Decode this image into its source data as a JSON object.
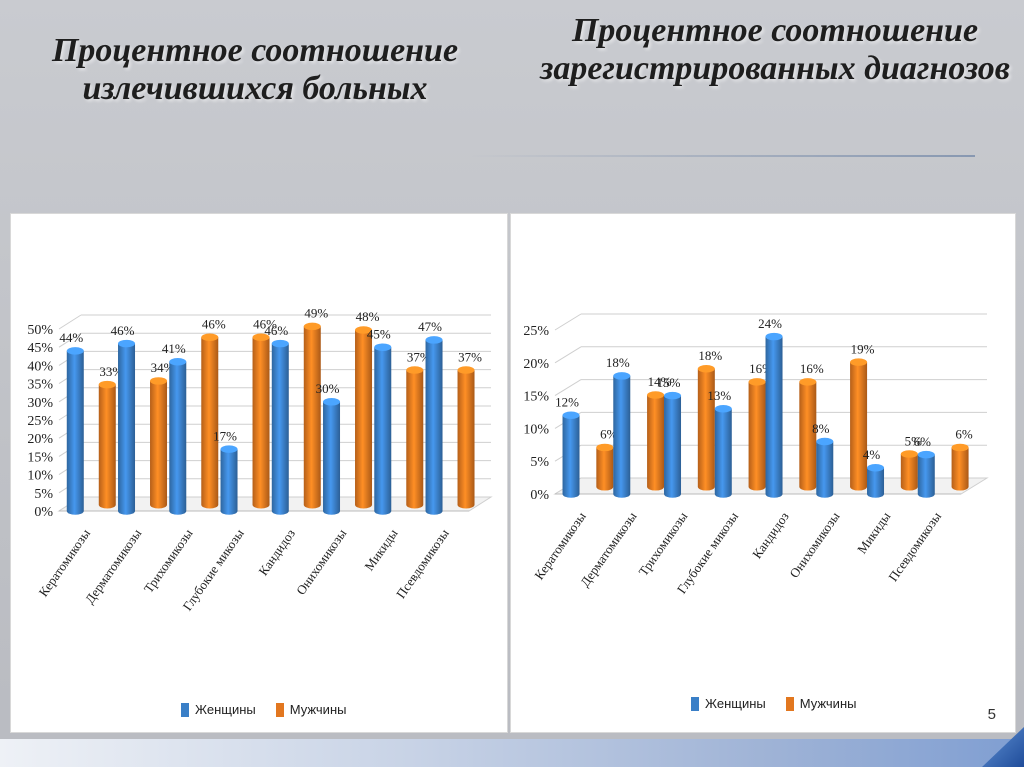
{
  "titles": {
    "left": "Процентное соотношение излечившихся больных",
    "right": "Процентное соотношение зарегистрированных диагнозов"
  },
  "page_number": "5",
  "colors": {
    "women": "#3a7fc7",
    "men": "#e2771f"
  },
  "chart_data": [
    {
      "type": "bar",
      "title": "",
      "categories": [
        "Кератомикозы",
        "Дерматомикозы",
        "Трихомикозы",
        "Глубокие микозы",
        "Кандидоз",
        "Онихомикозы",
        "Микиды",
        "Псевдомикозы"
      ],
      "series": [
        {
          "name": "Женщины",
          "values": [
            44,
            46,
            41,
            17,
            46,
            30,
            45,
            47
          ]
        },
        {
          "name": "Мужчины",
          "values": [
            33,
            34,
            46,
            46,
            49,
            48,
            37,
            37
          ]
        }
      ],
      "y_ticks": [
        "0%",
        "5%",
        "10%",
        "15%",
        "20%",
        "25%",
        "30%",
        "35%",
        "40%",
        "45%",
        "50%"
      ],
      "ylim": [
        0,
        50
      ],
      "data_labels": {
        "Женщины": [
          "44%",
          "46%",
          "41%",
          "17%",
          "46%",
          "30%",
          "45%",
          "47%"
        ],
        "Мужчины": [
          "33%",
          "34%",
          "46%",
          "46%",
          "49%",
          "48%",
          "37%",
          "37%"
        ]
      },
      "legend_position": "bottom",
      "grid": true
    },
    {
      "type": "bar",
      "title": "",
      "categories": [
        "Кератомикозы",
        "Дерматомикозы",
        "Трихомикозы",
        "Глубокие микозы",
        "Кандидоз",
        "Онихомикозы",
        "Микиды",
        "Псевдомикозы"
      ],
      "series": [
        {
          "name": "Женщины",
          "values": [
            12,
            18,
            15,
            13,
            24,
            8,
            4,
            6
          ]
        },
        {
          "name": "Мужчины",
          "values": [
            6,
            14,
            18,
            16,
            16,
            19,
            5,
            6
          ]
        }
      ],
      "y_ticks": [
        "0%",
        "5%",
        "10%",
        "15%",
        "20%",
        "25%"
      ],
      "ylim": [
        0,
        25
      ],
      "data_labels": {
        "Женщины": [
          "12%",
          "18%",
          "15%",
          "13%",
          "24%",
          "8%",
          "4%",
          "6%"
        ],
        "Мужчины": [
          "6%",
          "14%",
          "18%",
          "16%",
          "16%",
          "19%",
          "5%",
          "6%"
        ]
      },
      "legend_position": "bottom",
      "grid": true
    }
  ]
}
